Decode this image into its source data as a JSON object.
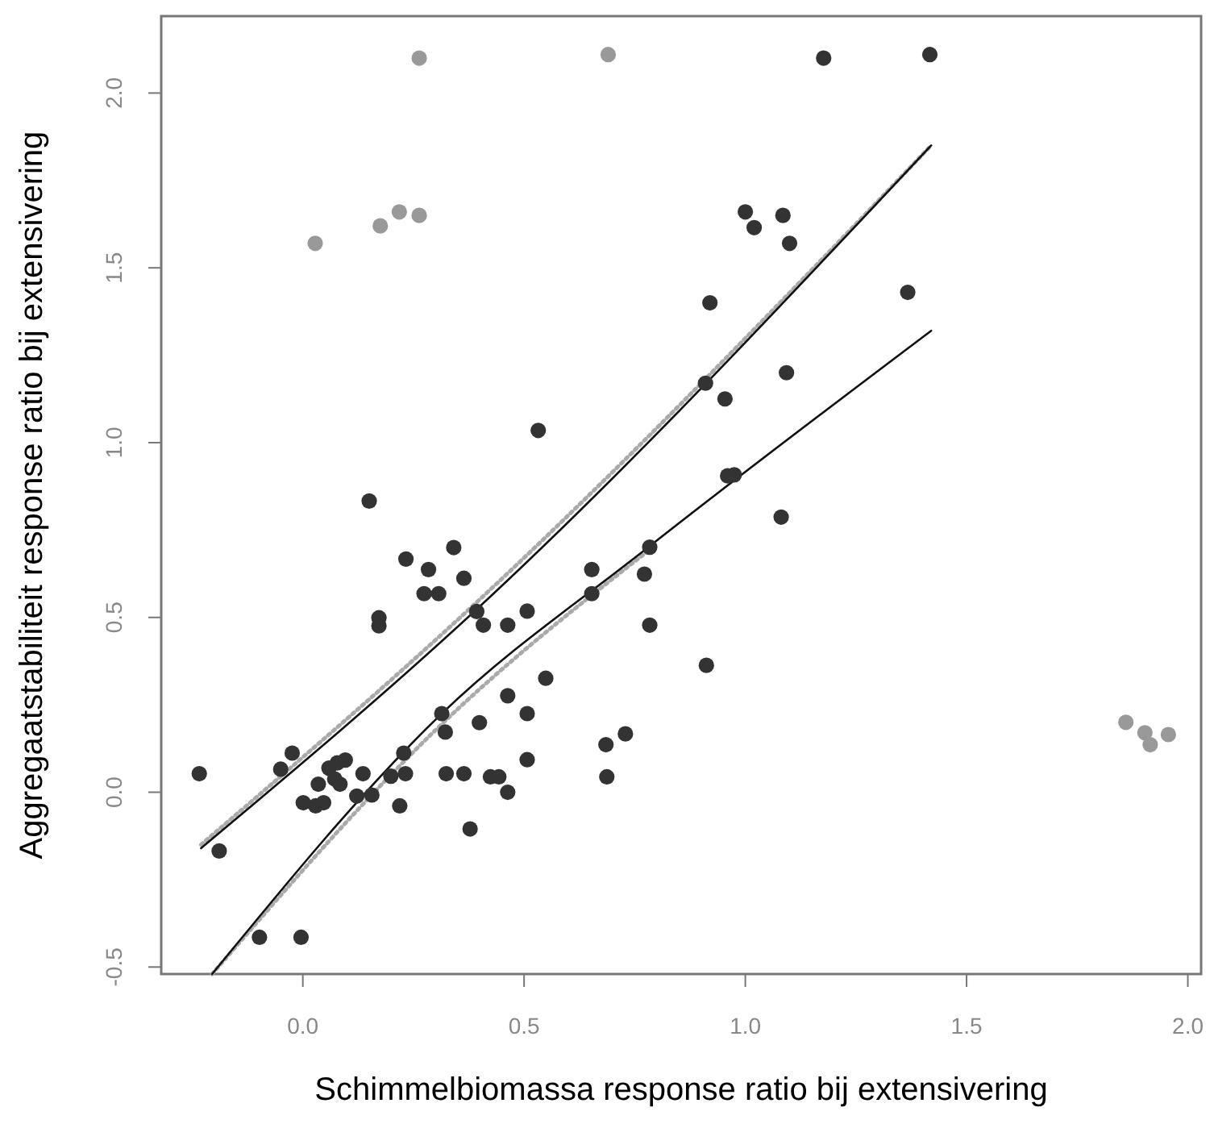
{
  "chart_data": {
    "type": "scatter",
    "xlabel": "Schimmelbiomassa response ratio bij extensivering",
    "ylabel": "Aggregaatstabiliteit response ratio bij extensivering",
    "xlim": [
      -0.32,
      2.03
    ],
    "ylim": [
      -0.52,
      2.22
    ],
    "xticks": [
      {
        "value": 0,
        "label": "0.0"
      },
      0.5,
      {
        "value": 1,
        "label": "1.0"
      },
      1.5,
      {
        "value": 2,
        "label": "2.0"
      }
    ],
    "yticks": [
      -0.5,
      {
        "value": 0,
        "label": "0.0"
      },
      0.5,
      {
        "value": 1,
        "label": "1.0"
      },
      1.5,
      {
        "value": 2,
        "label": "2.0"
      }
    ],
    "grid": false,
    "series": [
      {
        "color": "#333333",
        "marker": "circle",
        "x": [
          0.532,
          1.177,
          1.417,
          1.0,
          1.085,
          1.02,
          1.1,
          0.92,
          1.367,
          0.91,
          1.093,
          0.954,
          0.96,
          0.975,
          1.081,
          0.912,
          0.15,
          0.233,
          0.341,
          0.284,
          0.364,
          0.274,
          0.307,
          0.172,
          0.172,
          0.393,
          0.408,
          0.463,
          0.507,
          0.653,
          0.772,
          0.784,
          0.653,
          0.784,
          0.549,
          0.463,
          0.507,
          0.314,
          0.399,
          0.322,
          0.729,
          0.685,
          0.687,
          0.507,
          0.228,
          0.324,
          0.364,
          0.424,
          0.443,
          0.463,
          0.378,
          0.219,
          0.232,
          0.199,
          0.136,
          0.122,
          0.156,
          -0.234,
          -0.189,
          -0.05,
          -0.024,
          0.001,
          0.029,
          0.047,
          0.035,
          0.059,
          0.078,
          0.096,
          0.072,
          0.084,
          -0.098,
          -0.004
        ],
        "values": [
          1.035,
          2.1,
          2.11,
          1.66,
          1.65,
          1.615,
          1.57,
          1.4,
          1.43,
          1.17,
          1.2,
          1.125,
          0.905,
          0.908,
          0.787,
          0.363,
          0.833,
          0.667,
          0.7,
          0.637,
          0.612,
          0.568,
          0.568,
          0.499,
          0.476,
          0.517,
          0.478,
          0.478,
          0.518,
          0.637,
          0.624,
          0.701,
          0.568,
          0.478,
          0.326,
          0.276,
          0.225,
          0.225,
          0.199,
          0.172,
          0.167,
          0.136,
          0.044,
          0.093,
          0.112,
          0.053,
          0.053,
          0.044,
          0.044,
          0.0,
          -0.105,
          -0.039,
          0.053,
          0.046,
          0.053,
          -0.011,
          -0.008,
          0.053,
          -0.168,
          0.066,
          0.112,
          -0.03,
          -0.039,
          -0.03,
          0.023,
          0.069,
          0.084,
          0.092,
          0.038,
          0.023,
          -0.415,
          -0.415
        ]
      },
      {
        "color": "#999999",
        "marker": "circle",
        "x": [
          0.263,
          0.69,
          0.028,
          0.175,
          0.218,
          0.263,
          1.86,
          1.903,
          1.915,
          1.956
        ],
        "values": [
          2.1,
          2.11,
          1.57,
          1.62,
          1.66,
          1.65,
          0.2,
          0.17,
          0.136,
          0.165
        ]
      },
      {
        "type": "line",
        "color": "#aaaaaa",
        "line_style": "dotted",
        "x": [
          -0.23,
          0.39,
          1.42
        ],
        "values": [
          -0.15,
          0.54,
          1.85
        ]
      },
      {
        "type": "line",
        "color": "#111111",
        "line_style": "solid",
        "x": [
          -0.23,
          0.39,
          1.42
        ],
        "values": [
          -0.16,
          0.52,
          1.85
        ]
      },
      {
        "type": "line",
        "color": "#aaaaaa",
        "line_style": "dotted",
        "x": [
          -0.205,
          0.31,
          0.78
        ],
        "values": [
          -0.52,
          0.19,
          0.69
        ]
      },
      {
        "type": "line",
        "color": "#111111",
        "line_style": "solid",
        "x": [
          -0.205,
          0.31,
          0.78,
          1.42
        ],
        "values": [
          -0.52,
          0.22,
          0.7,
          1.32
        ]
      }
    ]
  }
}
